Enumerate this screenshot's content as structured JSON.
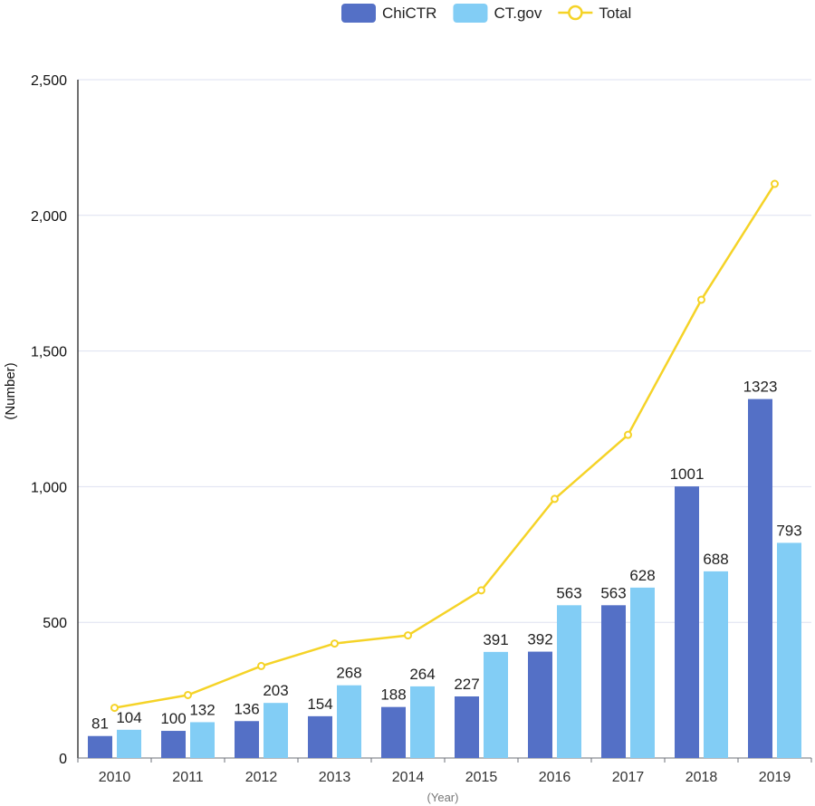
{
  "chart_data": {
    "type": "bar",
    "categories": [
      "2010",
      "2011",
      "2012",
      "2013",
      "2014",
      "2015",
      "2016",
      "2017",
      "2018",
      "2019"
    ],
    "series": [
      {
        "name": "ChiCTR",
        "type": "bar",
        "color": "#5470c6",
        "values": [
          81,
          100,
          136,
          154,
          188,
          227,
          392,
          563,
          1001,
          1323
        ]
      },
      {
        "name": "CT.gov",
        "type": "bar",
        "color": "#82cdf5",
        "values": [
          104,
          132,
          203,
          268,
          264,
          391,
          563,
          628,
          688,
          793
        ]
      },
      {
        "name": "Total",
        "type": "line",
        "color": "#f5d327",
        "values": [
          185,
          232,
          339,
          422,
          452,
          618,
          955,
          1191,
          1689,
          2116
        ]
      }
    ],
    "xlabel": "(Year)",
    "ylabel": "(Number)",
    "ylim": [
      0,
      2500
    ],
    "yticks": [
      "0",
      "500",
      "1,000",
      "1,500",
      "2,000",
      "2,500"
    ],
    "grid": true,
    "legend_position": "top-center"
  }
}
